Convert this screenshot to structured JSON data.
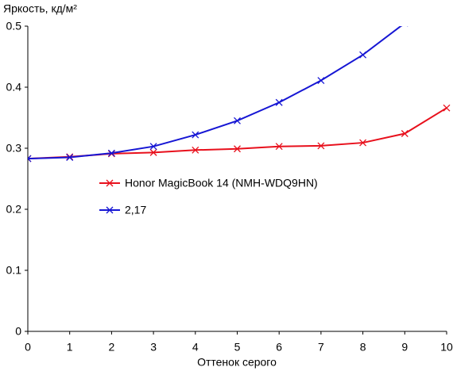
{
  "chart_data": {
    "type": "line",
    "y_label": "Яркость, кд/м²",
    "x_label": "Оттенок серого",
    "x": [
      0,
      1,
      2,
      3,
      4,
      5,
      6,
      7,
      8,
      9,
      10
    ],
    "series": [
      {
        "name": "Honor MagicBook 14 (NMH-WDQ9HN)",
        "color": "#e8101c",
        "values": [
          0.283,
          0.286,
          0.291,
          0.293,
          0.297,
          0.299,
          0.303,
          0.304,
          0.309,
          0.324,
          0.366
        ]
      },
      {
        "name": "2,17",
        "color": "#1616d4",
        "values": [
          0.283,
          0.285,
          0.292,
          0.303,
          0.322,
          0.345,
          0.375,
          0.411,
          0.453,
          0.505,
          null
        ]
      }
    ],
    "xlim": [
      0,
      10
    ],
    "xticks": [
      0,
      1,
      2,
      3,
      4,
      5,
      6,
      7,
      8,
      9,
      10
    ],
    "ylim": [
      0,
      0.5
    ],
    "yticks": [
      0,
      0.1,
      0.2,
      0.3,
      0.4,
      0.5
    ],
    "grid": false
  }
}
